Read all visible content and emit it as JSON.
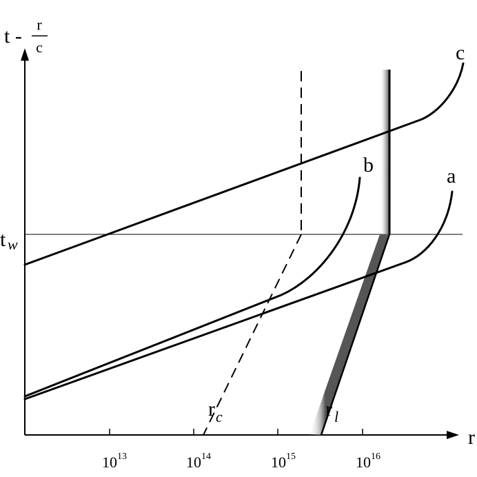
{
  "y_axis": {
    "label_main": "t - ",
    "fraction_num": "r",
    "fraction_den": "c"
  },
  "x_axis": {
    "label": "r"
  },
  "tw_label": {
    "main": "t",
    "sub": "w"
  },
  "ticks": [
    {
      "base": "10",
      "exp": "13"
    },
    {
      "base": "10",
      "exp": "14"
    },
    {
      "base": "10",
      "exp": "15"
    },
    {
      "base": "10",
      "exp": "16"
    }
  ],
  "curves": {
    "a": "a",
    "b": "b",
    "c": "c"
  },
  "lines": {
    "rc": {
      "main": "r",
      "sub": "c"
    },
    "rl": {
      "main": "r",
      "sub": "l"
    }
  }
}
